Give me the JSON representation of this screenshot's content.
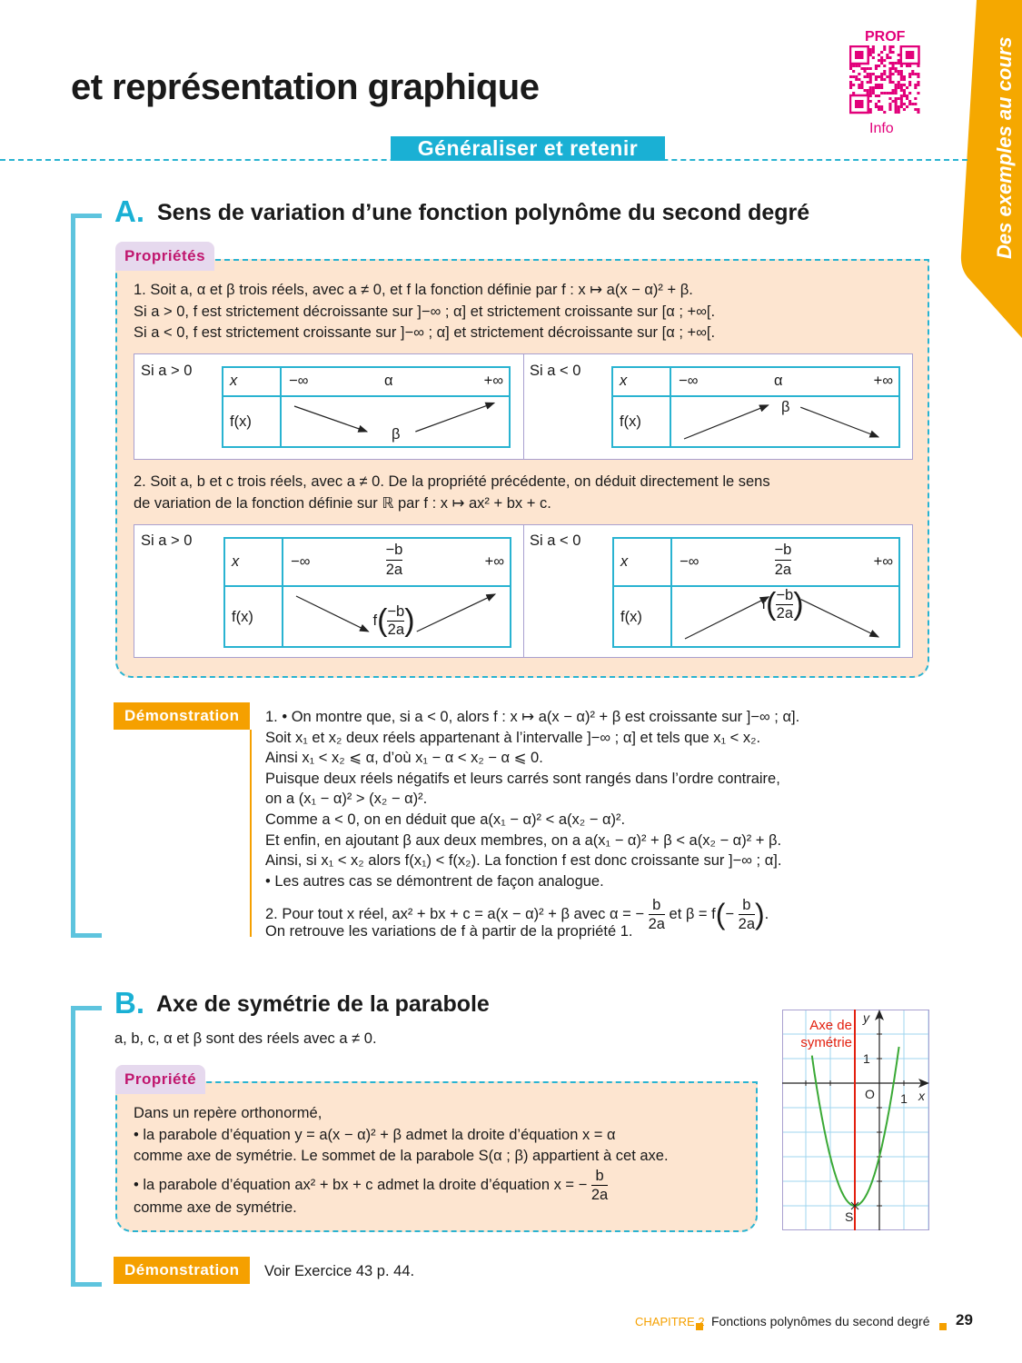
{
  "header": {
    "title": "et représentation graphique",
    "qr_top": "PROF",
    "qr_bottom": "Info",
    "side_tab": "Des exemples au cours",
    "banner": "Généraliser et retenir"
  },
  "colors": {
    "accent": "#1ab0d4",
    "orange": "#f5a000",
    "magenta": "#e2007a",
    "box": "#fde5d0"
  },
  "sectionA": {
    "letter": "A.",
    "title": "Sens de variation d’une fonction polynôme du second degré",
    "tab": "Propriétés",
    "p1": [
      "1. Soit a, α et β trois réels, avec a ≠ 0, et f la fonction définie par f : x ↦ a(x − α)² + β.",
      "Si a > 0, f est strictement décroissante sur ]−∞ ; α] et strictement croissante sur [α ; +∞[.",
      "Si a < 0, f est strictement croissante sur ]−∞ ; α] et strictement décroissante sur [α ; +∞[."
    ],
    "table1": {
      "left_label": "Si a > 0",
      "right_label": "Si a < 0",
      "x": "x",
      "fx": "f(x)",
      "minf": "−∞",
      "pinf": "+∞",
      "alpha": "α",
      "beta": "β"
    },
    "p2": [
      "2. Soit a, b et c trois réels, avec a ≠ 0. De la propriété précédente, on déduit directement le sens",
      "de variation de la fonction définie sur ℝ par f : x ↦ ax² + bx + c."
    ],
    "table2": {
      "left_label": "Si a > 0",
      "right_label": "Si a < 0",
      "x": "x",
      "fx": "f(x)",
      "minf": "−∞",
      "pinf": "+∞",
      "num": "−b",
      "den": "2a",
      "f": "f"
    },
    "demo_tab": "Démonstration",
    "demo": [
      "1. • On montre que, si a < 0, alors f : x ↦ a(x − α)² + β est croissante sur ]−∞ ; α].",
      "Soit x₁ et x₂ deux réels appartenant à l’intervalle ]−∞ ; α] et tels que x₁ < x₂.",
      "Ainsi x₁ < x₂ ⩽ α, d’où x₁ − α < x₂ − α ⩽ 0.",
      "Puisque deux réels négatifs et leurs carrés sont rangés dans l’ordre contraire,",
      "on a (x₁ − α)² > (x₂ − α)².",
      "Comme a < 0, on en déduit que a(x₁ − α)² < a(x₂ − α)².",
      "Et enfin, en ajoutant β aux deux membres, on a a(x₁ − α)² + β < a(x₂ − α)² + β.",
      "Ainsi, si x₁ < x₂ alors f(x₁) < f(x₂). La fonction f est donc croissante sur ]−∞ ; α].",
      "• Les autres cas se démontrent de façon analogue."
    ],
    "demo2_pre": "2. Pour tout x réel, ax² + bx + c = a(x − α)² + β avec α = −",
    "demo2_mid": "et β = f",
    "demo2_frac_num": "b",
    "demo2_frac_den": "2a",
    "demo2_minus": "−",
    "demo_last": "On retrouve les variations de f à partir de la propriété 1."
  },
  "sectionB": {
    "letter": "B.",
    "title": "Axe de symétrie de la parabole",
    "intro": "a, b, c, α et β sont des réels avec a ≠ 0.",
    "tab": "Propriété",
    "lines": [
      "Dans un repère orthonormé,",
      "• la parabole d’équation y = a(x − α)² + β admet la droite d’équation x = α",
      "comme axe de symétrie. Le sommet de la parabole S(α ; β) appartient à cet axe."
    ],
    "line4": "• la parabole d’équation ax² + bx + c admet la droite d’équation x = −",
    "frac_num": "b",
    "frac_den": "2a",
    "line5": "comme axe de symétrie.",
    "demo_tab": "Démonstration",
    "demo_text": "Voir Exercice 43 p. 44.",
    "graph": {
      "axis_label": [
        "Axe de",
        "symétrie"
      ],
      "x": "x",
      "y": "y",
      "one_x": "1",
      "one_y": "1",
      "origin": "O",
      "vertex": "S"
    }
  },
  "footer": {
    "chapter": "CHAPITRE 2",
    "title": "Fonctions polynômes du second degré",
    "page": "29"
  }
}
